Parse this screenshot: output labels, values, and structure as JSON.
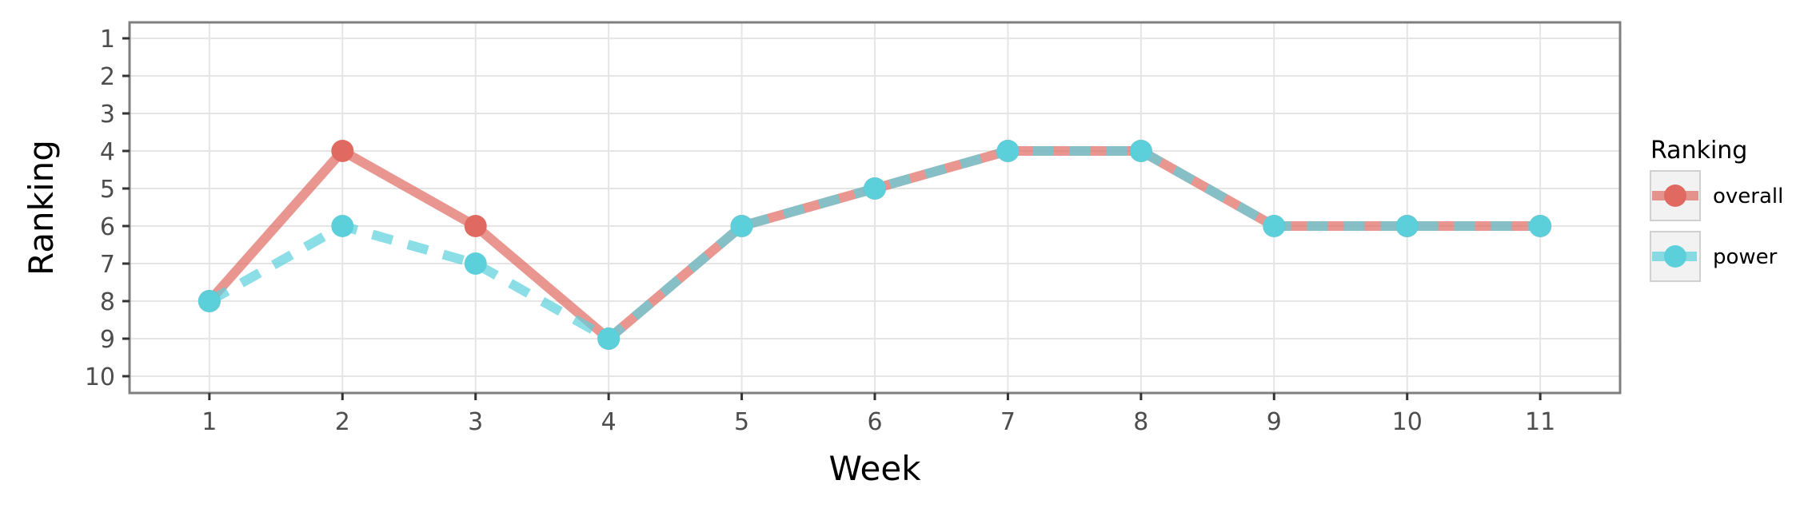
{
  "chart_data": {
    "type": "line",
    "xlabel": "Week",
    "ylabel": "Ranking",
    "x": [
      1,
      2,
      3,
      4,
      5,
      6,
      7,
      8,
      9,
      10,
      11
    ],
    "x_ticks": [
      "1",
      "2",
      "3",
      "4",
      "5",
      "6",
      "7",
      "8",
      "9",
      "10",
      "11"
    ],
    "y_ticks": [
      "1",
      "2",
      "3",
      "4",
      "5",
      "6",
      "7",
      "8",
      "9",
      "10"
    ],
    "xlim": [
      0.4,
      11.6
    ],
    "ylim": [
      1,
      10
    ],
    "y_reversed": true,
    "grid": true,
    "legend": {
      "title": "Ranking",
      "placement": "right"
    },
    "series": [
      {
        "name": "overall",
        "color": "#E06A61",
        "dash": "solid",
        "values": [
          8,
          4,
          6,
          9,
          6,
          5,
          4,
          4,
          6,
          6,
          6
        ]
      },
      {
        "name": "power",
        "color": "#5BD0DB",
        "dash": "dashed",
        "values": [
          8,
          6,
          7,
          9,
          6,
          5,
          4,
          4,
          6,
          6,
          6
        ]
      }
    ]
  }
}
